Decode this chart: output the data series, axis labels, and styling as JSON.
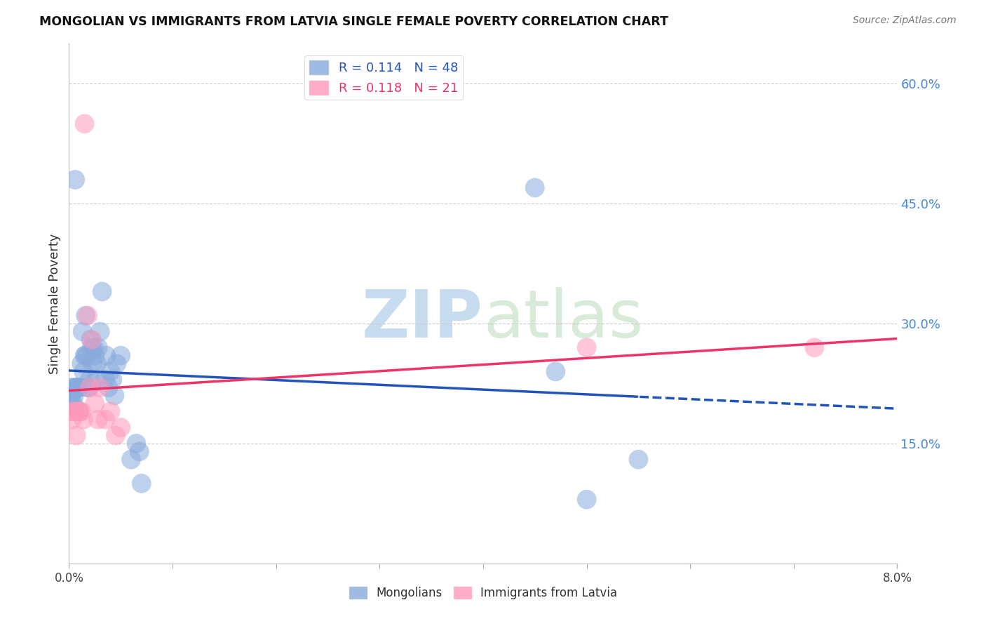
{
  "title": "MONGOLIAN VS IMMIGRANTS FROM LATVIA SINGLE FEMALE POVERTY CORRELATION CHART",
  "source": "Source: ZipAtlas.com",
  "ylabel": "Single Female Poverty",
  "mongolians_R": 0.114,
  "mongolians_N": 48,
  "latvia_R": 0.118,
  "latvia_N": 21,
  "blue_scatter_color": "#88AADD",
  "pink_scatter_color": "#FF99BB",
  "blue_line_color": "#2255BB",
  "pink_line_color": "#EE3366",
  "right_axis_color": "#4488DD",
  "background_color": "#FFFFFF",
  "watermark_color": "#C8DCF0",
  "xmin": 0.0,
  "xmax": 0.08,
  "ymin": 0.0,
  "ymax": 0.65,
  "right_yticks": [
    0.0,
    0.15,
    0.3,
    0.45,
    0.6
  ],
  "right_ytick_labels": [
    "",
    "15.0%",
    "30.0%",
    "45.0%",
    "60.0%"
  ],
  "mongolians_x": [
    0.0002,
    0.0002,
    0.0003,
    0.0004,
    0.0005,
    0.0005,
    0.0006,
    0.0007,
    0.0008,
    0.0009,
    0.001,
    0.001,
    0.0012,
    0.0013,
    0.0014,
    0.0015,
    0.0016,
    0.0016,
    0.0017,
    0.0018,
    0.0019,
    0.002,
    0.0021,
    0.0022,
    0.0023,
    0.0024,
    0.0025,
    0.0026,
    0.0027,
    0.0028,
    0.003,
    0.0032,
    0.0035,
    0.0036,
    0.0038,
    0.004,
    0.0042,
    0.0044,
    0.0046,
    0.005,
    0.006,
    0.0065,
    0.0068,
    0.007,
    0.045,
    0.047,
    0.05,
    0.055
  ],
  "mongolians_y": [
    0.21,
    0.2,
    0.22,
    0.2,
    0.21,
    0.22,
    0.48,
    0.22,
    0.22,
    0.22,
    0.22,
    0.19,
    0.25,
    0.29,
    0.24,
    0.26,
    0.31,
    0.26,
    0.26,
    0.22,
    0.22,
    0.23,
    0.28,
    0.27,
    0.25,
    0.27,
    0.26,
    0.23,
    0.25,
    0.27,
    0.29,
    0.34,
    0.23,
    0.26,
    0.22,
    0.24,
    0.23,
    0.21,
    0.25,
    0.26,
    0.13,
    0.15,
    0.14,
    0.1,
    0.47,
    0.24,
    0.08,
    0.13
  ],
  "latvians_x": [
    0.0002,
    0.0003,
    0.0005,
    0.0007,
    0.0009,
    0.001,
    0.0012,
    0.0014,
    0.0015,
    0.0018,
    0.002,
    0.0022,
    0.0025,
    0.0028,
    0.003,
    0.0035,
    0.004,
    0.0045,
    0.005,
    0.05,
    0.072
  ],
  "latvians_y": [
    0.19,
    0.18,
    0.19,
    0.16,
    0.19,
    0.19,
    0.19,
    0.18,
    0.55,
    0.31,
    0.22,
    0.28,
    0.2,
    0.18,
    0.22,
    0.18,
    0.19,
    0.16,
    0.17,
    0.27,
    0.27
  ]
}
